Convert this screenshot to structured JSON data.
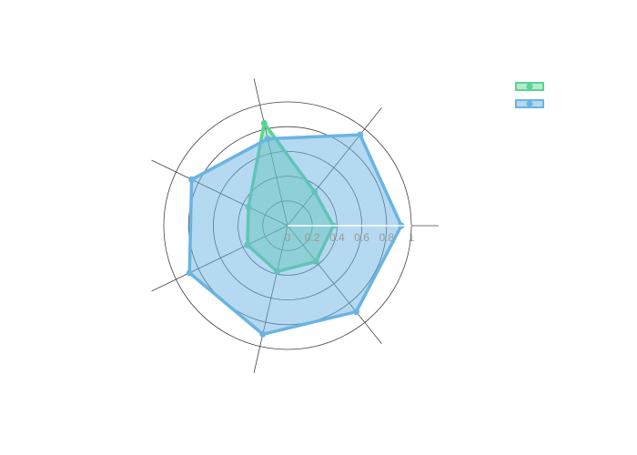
{
  "chart_data": {
    "type": "radar",
    "radial_axis": {
      "range": [
        0,
        1
      ],
      "tick_labels": [
        "0",
        "0.2",
        "0.4",
        "0.6",
        "0.8",
        "1"
      ],
      "tick_values": [
        0,
        0.2,
        0.4,
        0.6,
        0.8,
        1.0
      ],
      "line_color": "#ffffff"
    },
    "angular_axis": {
      "spoke_count": 7,
      "direction": "counterclockwise",
      "grid_color": "#444444"
    },
    "legend": {
      "position": "top-right",
      "show_text": false
    },
    "series": [
      {
        "color": "#5ad391",
        "fill": "rgba(90,211,145,0.45)",
        "values": [
          0.37,
          0.35,
          0.85,
          0.35,
          0.36,
          0.38,
          0.37
        ]
      },
      {
        "color": "#6ab4e2",
        "fill": "rgba(106,180,226,0.5)",
        "values": [
          0.92,
          0.94,
          0.72,
          0.86,
          0.88,
          0.9,
          0.89
        ]
      }
    ]
  }
}
